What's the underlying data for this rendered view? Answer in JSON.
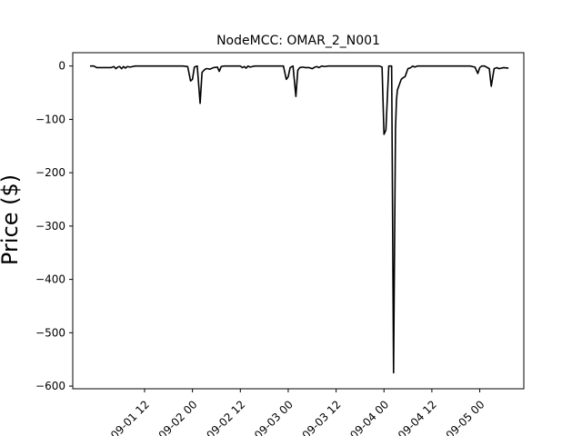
{
  "chart_data": {
    "type": "line",
    "title": "NodeMCC: OMAR_2_N001",
    "xlabel": "",
    "ylabel": "Price ($)",
    "xlim": [
      -0.25,
      4.46
    ],
    "ylim": [
      -605,
      25
    ],
    "yticks": [
      0,
      -100,
      -200,
      -300,
      -400,
      -500,
      -600
    ],
    "ytick_labels": [
      "0",
      "−100",
      "−200",
      "−300",
      "−400",
      "−500",
      "−600"
    ],
    "xticks": [
      0.5,
      1.0,
      1.5,
      2.0,
      2.5,
      3.0,
      3.5,
      4.0
    ],
    "xtick_labels": [
      "09-01 12",
      "09-02 00",
      "09-02 12",
      "09-03 00",
      "09-03 12",
      "09-04 00",
      "09-04 12",
      "09-05 00"
    ],
    "grid": false,
    "series": [
      {
        "name": "OMAR_2_N001",
        "color": "#000000",
        "x": [
          -0.07,
          -0.03,
          0.0,
          0.05,
          0.1,
          0.15,
          0.18,
          0.2,
          0.22,
          0.24,
          0.26,
          0.28,
          0.3,
          0.32,
          0.35,
          0.4,
          0.5,
          0.6,
          0.7,
          0.8,
          0.9,
          0.95,
          0.98,
          1.0,
          1.02,
          1.05,
          1.08,
          1.1,
          1.12,
          1.14,
          1.16,
          1.18,
          1.22,
          1.26,
          1.28,
          1.3,
          1.33,
          1.36,
          1.4,
          1.5,
          1.52,
          1.54,
          1.56,
          1.58,
          1.6,
          1.65,
          1.7,
          1.75,
          1.8,
          1.9,
          1.95,
          1.98,
          2.0,
          2.02,
          2.05,
          2.08,
          2.1,
          2.12,
          2.15,
          2.18,
          2.22,
          2.25,
          2.28,
          2.3,
          2.32,
          2.35,
          2.38,
          2.42,
          2.5,
          2.6,
          2.7,
          2.8,
          2.9,
          2.95,
          2.98,
          3.0,
          3.02,
          3.05,
          3.08,
          3.1,
          3.12,
          3.13,
          3.14,
          3.15,
          3.16,
          3.18,
          3.2,
          3.22,
          3.25,
          3.28,
          3.3,
          3.32,
          3.35,
          3.4,
          3.5,
          3.6,
          3.7,
          3.8,
          3.9,
          3.95,
          3.98,
          4.0,
          4.02,
          4.05,
          4.1,
          4.12,
          4.15,
          4.18,
          4.2,
          4.25,
          4.3
        ],
        "y": [
          0,
          0,
          -3,
          -3,
          -3,
          -3,
          -1,
          -5,
          -2,
          -1,
          -5,
          -1,
          -4,
          -1,
          -2,
          0,
          0,
          0,
          0,
          0,
          0,
          -1,
          -28,
          -25,
          -2,
          0,
          -70,
          -12,
          -8,
          -5,
          -5,
          -6,
          -3,
          -2,
          -10,
          -1,
          0,
          0,
          0,
          0,
          -3,
          -1,
          -4,
          0,
          -2,
          0,
          0,
          0,
          0,
          0,
          0,
          -25,
          -20,
          -3,
          0,
          -57,
          -8,
          -3,
          -2,
          -3,
          -3,
          -5,
          -2,
          -1,
          -3,
          0,
          -1,
          0,
          0,
          0,
          0,
          0,
          0,
          0,
          -2,
          -128,
          -120,
          0,
          0,
          -575,
          -120,
          -65,
          -45,
          -40,
          -35,
          -25,
          -22,
          -20,
          -5,
          -3,
          0,
          -2,
          0,
          0,
          0,
          0,
          0,
          0,
          0,
          -2,
          -14,
          -3,
          0,
          0,
          -5,
          -38,
          -5,
          -3,
          -5,
          -3,
          -4
        ]
      }
    ]
  }
}
